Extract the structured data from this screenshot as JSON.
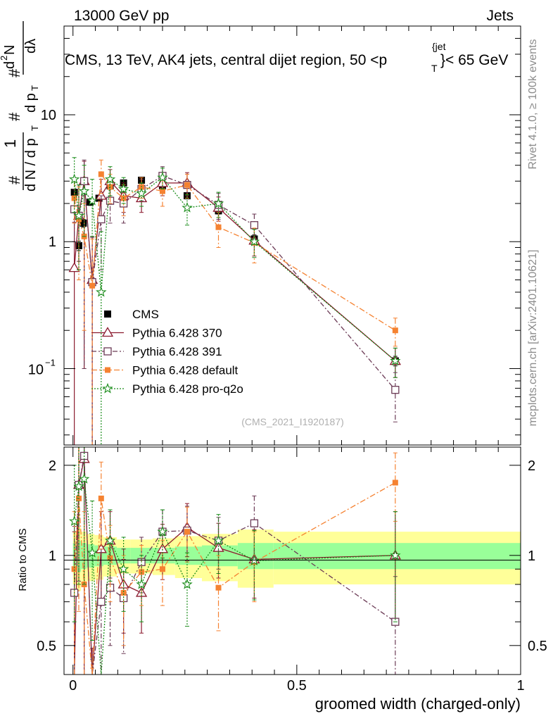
{
  "header": {
    "energy_label": "13000 GeV pp",
    "category_label": "Jets",
    "main_title": "CMS, 13 TeV, AK4 jets, central dijet region, 50 <p",
    "main_title_sup": "{jet",
    "main_title_sub": "T",
    "main_title_tail": "}< 65 GeV",
    "watermark": "(CMS_2021_I1920187)"
  },
  "side_labels": {
    "rivet": "Rivet 4.1.0, ≥ 100k events",
    "mcplots": "mcplots.cern.ch [arXiv:2401.10621]"
  },
  "axis_labels": {
    "ylabel_top": "#  1 / d N / d p_T  #  d p_T  d²N / dλ",
    "ylabel_top_parts": [
      "#",
      "1",
      "d N / d p",
      "T",
      "#",
      "d p",
      "T",
      "d",
      "2",
      "N",
      "dλ"
    ],
    "ylabel_ratio": "Ratio to CMS",
    "xlabel": "groomed width (charged-only)"
  },
  "colors": {
    "cms": "#000000",
    "p370": "#8b1a2e",
    "p391": "#6b3a55",
    "pdefault": "#f58231",
    "pq2o": "#1a8c1a",
    "band_inner": "#99ff99",
    "band_outer": "#ffff99"
  },
  "chart_data": {
    "type": "scatter",
    "x_range": [
      -0.02,
      1.0
    ],
    "y_range_top": [
      0.025,
      50
    ],
    "y_range_ratio": [
      0.4,
      2.3
    ],
    "x_ticks": [
      "0",
      "0.5",
      "1"
    ],
    "x_tick_values": [
      0,
      0.5,
      1
    ],
    "y_ticks_top": [
      "1",
      "10"
    ],
    "y_tick_values_top": [
      1,
      10
    ],
    "y_tick_minus1_base": "10",
    "y_tick_minus1_exp": "−1",
    "y_tick_minus1_value": 0.1,
    "y_ticks_ratio": [
      "0.5",
      "1",
      "2"
    ],
    "y_tick_values_ratio": [
      0.5,
      1,
      2
    ],
    "legend": [
      {
        "key": "cms",
        "label": "CMS"
      },
      {
        "key": "p370",
        "label": "Pythia 6.428 370"
      },
      {
        "key": "p391",
        "label": "Pythia 6.428 391"
      },
      {
        "key": "pdefault",
        "label": "Pythia 6.428 default"
      },
      {
        "key": "pq2o",
        "label": "Pythia 6.428 pro-q2o"
      }
    ],
    "series": [
      {
        "key": "cms",
        "name": "CMS",
        "x": [
          0.003,
          0.013,
          0.023,
          0.038,
          0.058,
          0.083,
          0.113,
          0.153,
          0.2,
          0.255,
          0.325,
          0.405,
          0.72
        ],
        "y": [
          2.45,
          0.93,
          1.4,
          2.05,
          2.2,
          2.75,
          2.9,
          3.05,
          2.75,
          2.3,
          1.75,
          1.05,
          0.115
        ],
        "err": [
          0.12,
          0.08,
          0.1,
          0.12,
          0.12,
          0.12,
          0.13,
          0.13,
          0.12,
          0.12,
          0.1,
          0.08,
          0.01
        ]
      },
      {
        "key": "p370",
        "name": "Pythia 6.428 370",
        "x": [
          0.003,
          0.013,
          0.025,
          0.043,
          0.063,
          0.083,
          0.113,
          0.153,
          0.2,
          0.255,
          0.325,
          0.405,
          0.72
        ],
        "y": [
          0.62,
          1.6,
          3.0,
          0.5,
          2.3,
          3.0,
          2.3,
          2.2,
          2.9,
          2.9,
          1.85,
          1.02,
          0.115
        ],
        "err_up": [
          0.8,
          1.2,
          1.3,
          0.6,
          0.8,
          0.7,
          0.6,
          0.5,
          0.6,
          0.6,
          0.4,
          0.25,
          0.03
        ],
        "err_dn": [
          0.62,
          0.9,
          2.9,
          0.49,
          0.8,
          0.7,
          0.6,
          0.5,
          0.6,
          0.6,
          0.4,
          0.25,
          0.03
        ],
        "ratio": [
          0.3,
          1.72,
          2.1,
          0.25,
          1.05,
          1.12,
          0.8,
          0.75,
          1.05,
          1.24,
          1.06,
          0.97,
          1.0
        ],
        "ratio_err": [
          0.9,
          0.9,
          1.9,
          0.24,
          0.35,
          0.28,
          0.25,
          0.2,
          0.22,
          0.25,
          0.22,
          0.25,
          0.4
        ]
      },
      {
        "key": "p391",
        "name": "Pythia 6.428 391",
        "x": [
          0.003,
          0.013,
          0.025,
          0.043,
          0.063,
          0.083,
          0.113,
          0.153,
          0.2,
          0.255,
          0.325,
          0.405,
          0.72
        ],
        "y": [
          1.8,
          1.6,
          3.0,
          0.48,
          1.5,
          2.1,
          2.0,
          2.6,
          3.3,
          2.8,
          1.95,
          1.35,
          0.068
        ],
        "err_up": [
          0.8,
          1.2,
          1.4,
          0.6,
          0.8,
          0.7,
          0.6,
          0.5,
          0.6,
          0.6,
          0.45,
          0.3,
          0.025
        ],
        "err_dn": [
          0.8,
          1.0,
          2.9,
          0.47,
          0.9,
          0.7,
          0.6,
          0.5,
          0.6,
          0.6,
          0.45,
          0.3,
          0.03
        ],
        "ratio": [
          0.75,
          1.72,
          2.15,
          0.23,
          0.7,
          0.78,
          0.72,
          0.95,
          1.2,
          1.21,
          1.12,
          1.28,
          0.6
        ],
        "ratio_err": [
          0.5,
          0.9,
          1.9,
          0.22,
          0.35,
          0.28,
          0.25,
          0.2,
          0.22,
          0.25,
          0.22,
          0.3,
          0.25
        ]
      },
      {
        "key": "pdefault",
        "name": "Pythia 6.428 default",
        "x": [
          0.003,
          0.013,
          0.025,
          0.043,
          0.063,
          0.083,
          0.113,
          0.153,
          0.2,
          0.255,
          0.325,
          0.405,
          0.72
        ],
        "y": [
          2.2,
          1.5,
          1.1,
          0.45,
          3.4,
          2.7,
          2.2,
          2.7,
          2.5,
          2.8,
          1.3,
          0.98,
          0.2
        ],
        "err_up": [
          0.8,
          1.2,
          0.9,
          0.6,
          1.0,
          0.7,
          0.6,
          0.5,
          0.6,
          0.6,
          0.4,
          0.3,
          0.05
        ],
        "err_dn": [
          0.8,
          1.0,
          0.9,
          0.44,
          1.0,
          0.7,
          0.6,
          0.5,
          0.6,
          0.6,
          0.4,
          0.3,
          0.05
        ],
        "ratio": [
          0.9,
          1.55,
          0.8,
          0.22,
          1.55,
          0.98,
          0.75,
          0.88,
          0.9,
          1.2,
          0.78,
          0.95,
          1.75
        ],
        "ratio_err": [
          0.5,
          0.9,
          0.6,
          0.2,
          0.5,
          0.28,
          0.25,
          0.2,
          0.22,
          0.25,
          0.22,
          0.25,
          0.45
        ]
      },
      {
        "key": "pq2o",
        "name": "Pythia 6.428 pro-q2o",
        "x": [
          0.003,
          0.013,
          0.025,
          0.043,
          0.063,
          0.083,
          0.113,
          0.153,
          0.2,
          0.255,
          0.325,
          0.405,
          0.72
        ],
        "y": [
          3.1,
          1.6,
          2.5,
          2.1,
          0.4,
          3.1,
          2.6,
          2.4,
          3.2,
          1.85,
          2.0,
          1.0,
          0.115
        ],
        "err_up": [
          1.5,
          1.2,
          1.5,
          1.0,
          0.8,
          0.8,
          0.6,
          0.5,
          0.6,
          0.5,
          0.45,
          0.25,
          0.03
        ],
        "err_dn": [
          1.4,
          1.0,
          1.4,
          1.0,
          0.39,
          0.8,
          0.6,
          0.5,
          0.6,
          0.5,
          0.45,
          0.25,
          0.03
        ],
        "ratio": [
          1.3,
          1.7,
          1.8,
          1.02,
          0.18,
          1.12,
          0.9,
          0.8,
          1.2,
          0.8,
          1.12,
          0.96,
          1.0
        ],
        "ratio_err": [
          0.7,
          0.9,
          1.0,
          0.5,
          0.17,
          0.3,
          0.25,
          0.2,
          0.22,
          0.22,
          0.25,
          0.25,
          0.4
        ]
      }
    ],
    "cms_band_edges": [
      0,
      0.008,
      0.018,
      0.03,
      0.048,
      0.068,
      0.098,
      0.128,
      0.178,
      0.228,
      0.288,
      0.368,
      0.448,
      1.0
    ],
    "band_inner": [
      0.1,
      0.12,
      0.1,
      0.09,
      0.08,
      0.07,
      0.06,
      0.06,
      0.06,
      0.07,
      0.08,
      0.1,
      0.1
    ],
    "band_outer": [
      0.2,
      0.24,
      0.2,
      0.18,
      0.17,
      0.15,
      0.13,
      0.13,
      0.14,
      0.16,
      0.18,
      0.22,
      0.2
    ]
  }
}
